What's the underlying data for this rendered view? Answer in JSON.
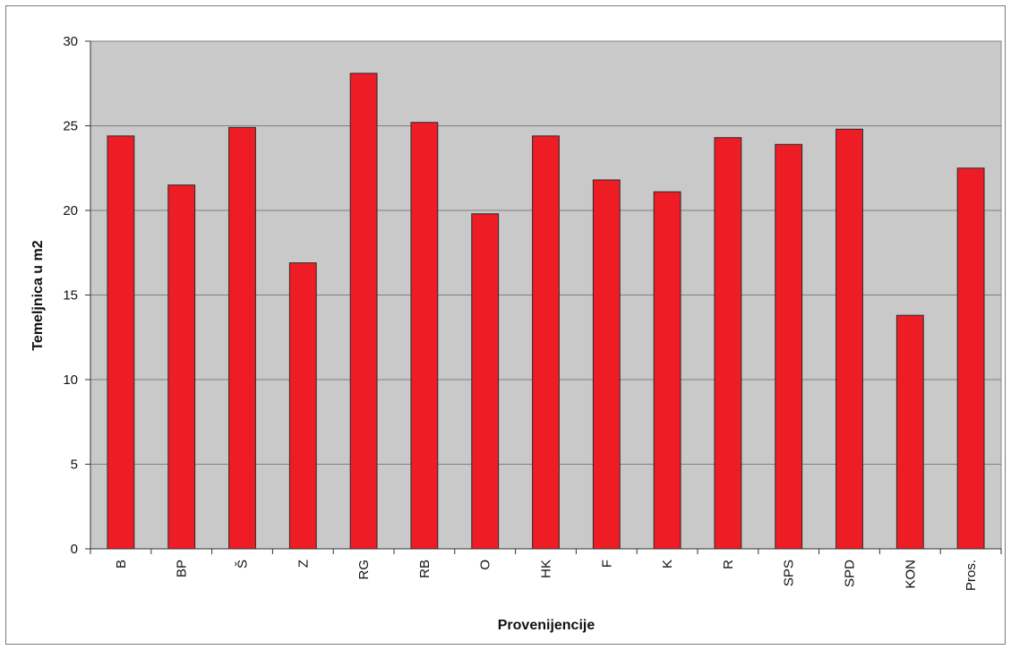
{
  "chart_data": {
    "type": "bar",
    "title": "",
    "xlabel": "Provenijencije",
    "ylabel": "Temeljnica u m2",
    "ylim": [
      0,
      30
    ],
    "yticks": [
      0,
      5,
      10,
      15,
      20,
      25,
      30
    ],
    "grid": true,
    "legend": "none",
    "colors": {
      "bar": "#ee1c25",
      "plot_background": "#c9c9c9",
      "gridline": "#7f7f7f"
    },
    "categories": [
      "B",
      "BP",
      "Š",
      "Z",
      "RG",
      "RB",
      "O",
      "HK",
      "F",
      "K",
      "R",
      "SPS",
      "SPD",
      "KON",
      "Pros."
    ],
    "values": [
      24.4,
      21.5,
      24.9,
      16.9,
      28.1,
      25.2,
      19.8,
      24.4,
      21.8,
      21.1,
      24.3,
      23.9,
      24.8,
      13.8,
      22.5
    ]
  }
}
